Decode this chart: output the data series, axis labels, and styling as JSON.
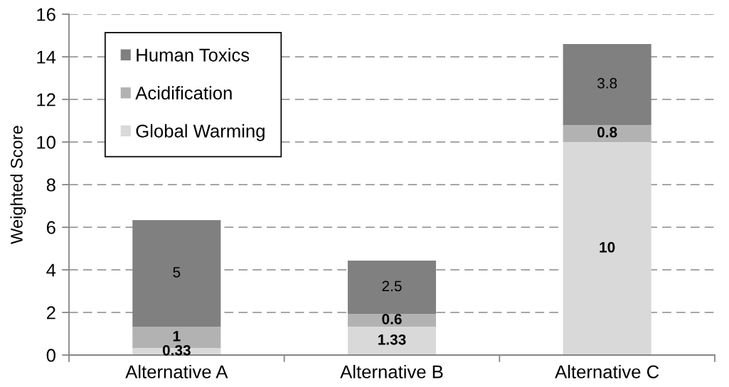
{
  "chart_data": {
    "type": "bar",
    "stacked": true,
    "categories": [
      "Alternative A",
      "Alternative B",
      "Alternative C"
    ],
    "series": [
      {
        "name": "Global Warming",
        "color": "#d9d9d9",
        "values": [
          0.33,
          1.33,
          10
        ]
      },
      {
        "name": "Acidification",
        "color": "#b2b2b2",
        "values": [
          1,
          0.6,
          0.8
        ]
      },
      {
        "name": "Human Toxics",
        "color": "#808080",
        "values": [
          5,
          2.5,
          3.8
        ]
      }
    ],
    "ylabel": "Weighted Score",
    "ylim": [
      0,
      16
    ],
    "yticks": [
      0,
      2,
      4,
      6,
      8,
      10,
      12,
      14,
      16
    ],
    "grid": "y",
    "legend": "top left",
    "data_labels": true
  }
}
